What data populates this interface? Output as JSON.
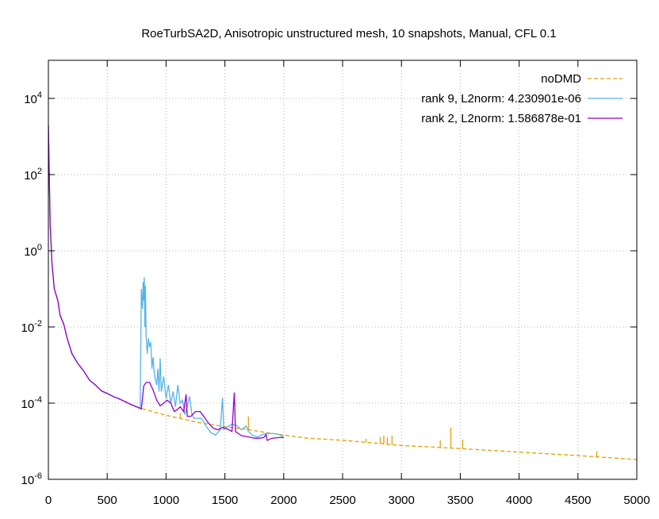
{
  "chart_data": {
    "type": "line",
    "title": "RoeTurbSA2D, Anisotropic unstructured mesh, 10 snapshots, Manual, CFL 0.1",
    "xlabel": "",
    "ylabel": "",
    "xlim": [
      0,
      5000
    ],
    "ylim": [
      1e-06,
      100000
    ],
    "yscale": "log",
    "grid": true,
    "legend_position": "top-right",
    "x_ticks": [
      {
        "value": 0,
        "label": "0"
      },
      {
        "value": 500,
        "label": "500"
      },
      {
        "value": 1000,
        "label": "1000"
      },
      {
        "value": 1500,
        "label": "1500"
      },
      {
        "value": 2000,
        "label": "2000"
      },
      {
        "value": 2500,
        "label": "2500"
      },
      {
        "value": 3000,
        "label": "3000"
      },
      {
        "value": 3500,
        "label": "3500"
      },
      {
        "value": 4000,
        "label": "4000"
      },
      {
        "value": 4500,
        "label": "4500"
      },
      {
        "value": 5000,
        "label": "5000"
      }
    ],
    "y_ticks": [
      {
        "value": 1e-06,
        "base": "10",
        "exp": "-6"
      },
      {
        "value": 0.0001,
        "base": "10",
        "exp": "-4"
      },
      {
        "value": 0.01,
        "base": "10",
        "exp": "-2"
      },
      {
        "value": 1,
        "base": "10",
        "exp": "0"
      },
      {
        "value": 100,
        "base": "10",
        "exp": "2"
      },
      {
        "value": 10000,
        "base": "10",
        "exp": "4"
      }
    ],
    "series": [
      {
        "name": "noDMD",
        "color": "#e69f00",
        "dash": "dashed",
        "points": [
          [
            0,
            2000
          ],
          [
            15,
            5
          ],
          [
            30,
            0.5
          ],
          [
            50,
            0.1
          ],
          [
            80,
            0.05
          ],
          [
            100,
            0.02
          ],
          [
            130,
            0.012
          ],
          [
            160,
            0.005
          ],
          [
            200,
            0.002
          ],
          [
            250,
            0.0011
          ],
          [
            300,
            0.0007
          ],
          [
            350,
            0.0004
          ],
          [
            400,
            0.0003
          ],
          [
            450,
            0.00021
          ],
          [
            500,
            0.00018
          ],
          [
            550,
            0.00015
          ],
          [
            600,
            0.00013
          ],
          [
            650,
            0.00011
          ],
          [
            700,
            9.25e-05
          ],
          [
            750,
            8e-05
          ],
          [
            800,
            7.2e-05
          ],
          [
            900,
            5.8e-05
          ],
          [
            1000,
            4.8e-05
          ],
          [
            1100,
            4.1e-05
          ],
          [
            1200,
            3.5e-05
          ],
          [
            1300,
            3e-05
          ],
          [
            1400,
            2.7e-05
          ],
          [
            1500,
            2.4e-05
          ],
          [
            1600,
            2.2e-05
          ],
          [
            1700,
            2e-05
          ],
          [
            1800,
            1.8e-05
          ],
          [
            1900,
            1.6e-05
          ],
          [
            2000,
            1.45e-05
          ],
          [
            2200,
            1.2e-05
          ],
          [
            2500,
            1.06e-05
          ],
          [
            2800,
            8.8e-06
          ],
          [
            3000,
            7.7e-06
          ],
          [
            3200,
            7.2e-06
          ],
          [
            3500,
            6.4e-06
          ],
          [
            4000,
            5.2e-06
          ],
          [
            4500,
            4.2e-06
          ],
          [
            5000,
            3.3e-06
          ]
        ],
        "spikes": [
          [
            1120,
            5.5e-05
          ],
          [
            1700,
            4.5e-05
          ],
          [
            2700,
            1.15e-05
          ],
          [
            2820,
            1.3e-05
          ],
          [
            2850,
            1.4e-05
          ],
          [
            2880,
            1.25e-05
          ],
          [
            2920,
            1.4e-05
          ],
          [
            3330,
            1.05e-05
          ],
          [
            3420,
            2.3e-05
          ],
          [
            3520,
            1.1e-05
          ],
          [
            4350,
            4.5e-06
          ],
          [
            4660,
            5.5e-06
          ]
        ]
      },
      {
        "name": "rank 9, L2norm: 4.230901e-06",
        "color": "#56b4e9",
        "dash": "solid",
        "points": [
          [
            0,
            2000
          ],
          [
            15,
            5
          ],
          [
            30,
            0.5
          ],
          [
            50,
            0.1
          ],
          [
            80,
            0.05
          ],
          [
            100,
            0.02
          ],
          [
            130,
            0.012
          ],
          [
            160,
            0.005
          ],
          [
            200,
            0.002
          ],
          [
            250,
            0.0011
          ],
          [
            300,
            0.0007
          ],
          [
            350,
            0.0004
          ],
          [
            400,
            0.0003
          ],
          [
            450,
            0.00021
          ],
          [
            500,
            0.00018
          ],
          [
            550,
            0.00015
          ],
          [
            600,
            0.00013
          ],
          [
            650,
            0.00011
          ],
          [
            700,
            9.25e-05
          ],
          [
            750,
            8e-05
          ],
          [
            780,
            7.44e-05
          ],
          [
            790,
            0.1
          ],
          [
            800,
            0.03
          ],
          [
            805,
            0.15
          ],
          [
            810,
            0.05
          ],
          [
            815,
            0.2
          ],
          [
            820,
            0.01
          ],
          [
            825,
            0.12
          ],
          [
            830,
            0.006
          ],
          [
            840,
            0.002
          ],
          [
            850,
            0.005
          ],
          [
            860,
            0.003
          ],
          [
            870,
            0.004
          ],
          [
            880,
            0.0008
          ],
          [
            890,
            0.0016
          ],
          [
            900,
            0.0006
          ],
          [
            910,
            0.0004
          ],
          [
            920,
            0.0003
          ],
          [
            930,
            0.0008
          ],
          [
            940,
            0.0002
          ],
          [
            950,
            0.0015
          ],
          [
            960,
            0.0002
          ],
          [
            980,
            0.0005
          ],
          [
            1000,
            0.00013
          ],
          [
            1020,
            0.0003
          ],
          [
            1040,
            0.0001
          ],
          [
            1060,
            0.0002
          ],
          [
            1080,
            8e-05
          ],
          [
            1100,
            0.0003
          ],
          [
            1120,
            0.0001
          ],
          [
            1140,
            0.00012
          ],
          [
            1160,
            5e-05
          ],
          [
            1180,
            8e-05
          ],
          [
            1200,
            0.00015
          ],
          [
            1220,
            5e-05
          ],
          [
            1240,
            4e-05
          ],
          [
            1260,
            4e-05
          ],
          [
            1280,
            4e-05
          ],
          [
            1300,
            4e-05
          ],
          [
            1340,
            2.5e-05
          ],
          [
            1380,
            1.7e-05
          ],
          [
            1420,
            1.45e-05
          ],
          [
            1460,
            2e-05
          ],
          [
            1480,
            0.00014
          ],
          [
            1490,
            2e-05
          ],
          [
            1520,
            2.4e-05
          ],
          [
            1560,
            2.8e-05
          ],
          [
            1600,
            2.6e-05
          ],
          [
            1640,
            2e-05
          ],
          [
            1680,
            2.5e-05
          ],
          [
            1700,
            1.8e-05
          ],
          [
            1740,
            1.4e-05
          ],
          [
            1780,
            1.3e-05
          ],
          [
            1820,
            1.5e-05
          ],
          [
            1860,
            1.6e-05
          ],
          [
            1900,
            1.6e-05
          ],
          [
            1950,
            1.55e-05
          ],
          [
            2000,
            1.3e-05
          ]
        ]
      },
      {
        "name": "rank 2, L2norm: 1.586878e-01",
        "color": "#9400d3",
        "dash": "solid",
        "points": [
          [
            0,
            2000
          ],
          [
            15,
            5
          ],
          [
            30,
            0.5
          ],
          [
            50,
            0.1
          ],
          [
            80,
            0.05
          ],
          [
            100,
            0.02
          ],
          [
            130,
            0.012
          ],
          [
            160,
            0.005
          ],
          [
            200,
            0.002
          ],
          [
            250,
            0.0011
          ],
          [
            300,
            0.0007
          ],
          [
            350,
            0.0004
          ],
          [
            400,
            0.0003
          ],
          [
            450,
            0.00021
          ],
          [
            500,
            0.00018
          ],
          [
            550,
            0.00015
          ],
          [
            600,
            0.00013
          ],
          [
            650,
            0.00011
          ],
          [
            700,
            9.25e-05
          ],
          [
            750,
            8e-05
          ],
          [
            790,
            7e-05
          ],
          [
            810,
            0.00028
          ],
          [
            830,
            0.00035
          ],
          [
            860,
            0.00035
          ],
          [
            890,
            0.00022
          ],
          [
            920,
            0.00012
          ],
          [
            950,
            8.5e-05
          ],
          [
            980,
            0.0001
          ],
          [
            1010,
            0.00012
          ],
          [
            1040,
            0.0001
          ],
          [
            1070,
            6e-05
          ],
          [
            1100,
            7e-05
          ],
          [
            1120,
            8e-05
          ],
          [
            1150,
            6e-05
          ],
          [
            1170,
            0.00017
          ],
          [
            1180,
            4.5e-05
          ],
          [
            1210,
            4.5e-05
          ],
          [
            1250,
            6e-05
          ],
          [
            1290,
            6e-05
          ],
          [
            1320,
            4.5e-05
          ],
          [
            1360,
            3e-05
          ],
          [
            1400,
            2.2e-05
          ],
          [
            1440,
            2e-05
          ],
          [
            1480,
            2.3e-05
          ],
          [
            1520,
            2.1e-05
          ],
          [
            1560,
            1.8e-05
          ],
          [
            1580,
            0.00019
          ],
          [
            1590,
            1.8e-05
          ],
          [
            1640,
            1.4e-05
          ],
          [
            1700,
            1.3e-05
          ],
          [
            1750,
            1.2e-05
          ],
          [
            1790,
            1.2e-05
          ],
          [
            1830,
            1.25e-05
          ],
          [
            1850,
            1.5e-05
          ],
          [
            1860,
            1.05e-05
          ],
          [
            1900,
            1.2e-05
          ],
          [
            1960,
            1.25e-05
          ],
          [
            2000,
            1.25e-05
          ]
        ]
      }
    ]
  }
}
